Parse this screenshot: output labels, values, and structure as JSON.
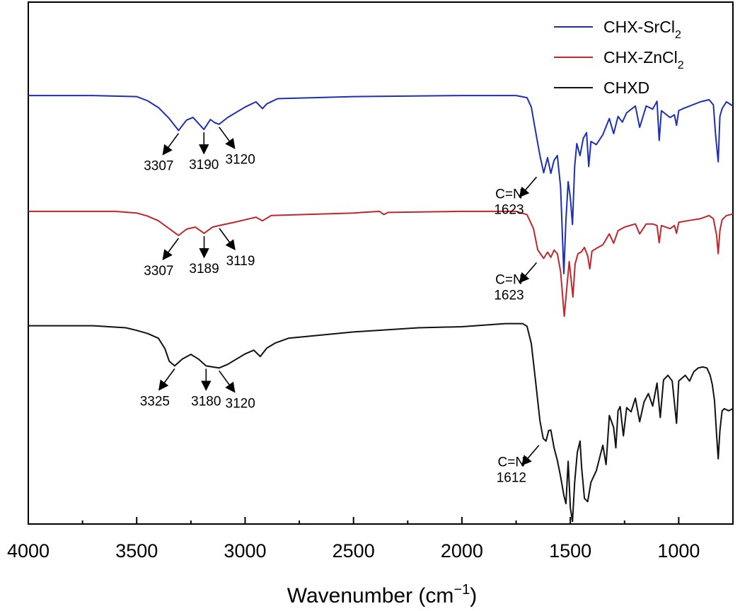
{
  "chart_data": {
    "type": "line",
    "title": "",
    "xlabel": "Wavenumber (cm",
    "xlabel_exponent": "−1",
    "xlabel_close": ")",
    "ylabel": "",
    "x_reversed": true,
    "xlim": [
      4000,
      750
    ],
    "ylim": [
      0,
      100
    ],
    "xticks": [
      {
        "value": 4000,
        "label": "4000"
      },
      {
        "value": 3500,
        "label": "3500"
      },
      {
        "value": 3000,
        "label": "3000"
      },
      {
        "value": 2500,
        "label": "2500"
      },
      {
        "value": 2000,
        "label": "2000"
      },
      {
        "value": 1500,
        "label": "1500"
      },
      {
        "value": 1000,
        "label": "1000"
      }
    ],
    "legend_position": "top-right",
    "series": [
      {
        "name": "CHX-SrCl2",
        "legend_main": "CHX-SrCl",
        "legend_sub": "2",
        "color": "#1d2fb3",
        "points": [
          [
            4000,
            82.1
          ],
          [
            3700,
            82.1
          ],
          [
            3500,
            81.9
          ],
          [
            3450,
            81.1
          ],
          [
            3400,
            79.8
          ],
          [
            3350,
            77.7
          ],
          [
            3307,
            75.4
          ],
          [
            3270,
            77.4
          ],
          [
            3240,
            77.9
          ],
          [
            3190,
            75.6
          ],
          [
            3160,
            77.5
          ],
          [
            3140,
            76.9
          ],
          [
            3120,
            76.6
          ],
          [
            3080,
            77.9
          ],
          [
            3000,
            79.9
          ],
          [
            2950,
            80.9
          ],
          [
            2920,
            79.6
          ],
          [
            2900,
            80.5
          ],
          [
            2850,
            81.5
          ],
          [
            2500,
            81.9
          ],
          [
            2000,
            82.1
          ],
          [
            1750,
            82.1
          ],
          [
            1700,
            81.7
          ],
          [
            1680,
            79.9
          ],
          [
            1660,
            75.2
          ],
          [
            1640,
            70.6
          ],
          [
            1623,
            67.3
          ],
          [
            1605,
            70.2
          ],
          [
            1590,
            67.2
          ],
          [
            1575,
            69.7
          ],
          [
            1560,
            70.6
          ],
          [
            1545,
            64.6
          ],
          [
            1530,
            48.0
          ],
          [
            1520,
            58.3
          ],
          [
            1510,
            65.6
          ],
          [
            1500,
            62.5
          ],
          [
            1490,
            57.4
          ],
          [
            1480,
            68.5
          ],
          [
            1470,
            72.9
          ],
          [
            1455,
            70.6
          ],
          [
            1440,
            73.9
          ],
          [
            1425,
            75.0
          ],
          [
            1415,
            68.5
          ],
          [
            1405,
            73.3
          ],
          [
            1380,
            72.7
          ],
          [
            1350,
            74.6
          ],
          [
            1320,
            77.7
          ],
          [
            1300,
            74.8
          ],
          [
            1280,
            78.1
          ],
          [
            1260,
            77.0
          ],
          [
            1240,
            78.8
          ],
          [
            1200,
            80.1
          ],
          [
            1180,
            76.0
          ],
          [
            1150,
            80.1
          ],
          [
            1120,
            79.5
          ],
          [
            1100,
            81.0
          ],
          [
            1090,
            73.5
          ],
          [
            1080,
            79.2
          ],
          [
            1040,
            77.9
          ],
          [
            1020,
            78.4
          ],
          [
            1010,
            76.4
          ],
          [
            1000,
            79.2
          ],
          [
            980,
            79.6
          ],
          [
            900,
            80.9
          ],
          [
            860,
            81.3
          ],
          [
            840,
            80.3
          ],
          [
            830,
            74.6
          ],
          [
            818,
            69.4
          ],
          [
            810,
            78.1
          ],
          [
            800,
            79.6
          ],
          [
            780,
            80.9
          ],
          [
            750,
            80.1
          ]
        ]
      },
      {
        "name": "CHX-ZnCl2",
        "legend_main": "CHX-ZnCl",
        "legend_sub": "2",
        "color": "#c0262b",
        "points": [
          [
            4000,
            59.9
          ],
          [
            3600,
            59.9
          ],
          [
            3500,
            59.6
          ],
          [
            3450,
            59.0
          ],
          [
            3400,
            58.1
          ],
          [
            3350,
            56.6
          ],
          [
            3307,
            55.3
          ],
          [
            3270,
            56.5
          ],
          [
            3230,
            56.9
          ],
          [
            3189,
            55.7
          ],
          [
            3150,
            56.9
          ],
          [
            3119,
            57.2
          ],
          [
            3050,
            57.8
          ],
          [
            2980,
            58.5
          ],
          [
            2950,
            58.8
          ],
          [
            2920,
            58.1
          ],
          [
            2880,
            59.1
          ],
          [
            2500,
            59.6
          ],
          [
            2380,
            59.9
          ],
          [
            2360,
            59.3
          ],
          [
            2340,
            59.7
          ],
          [
            2000,
            59.9
          ],
          [
            1750,
            59.9
          ],
          [
            1700,
            59.3
          ],
          [
            1670,
            56.6
          ],
          [
            1650,
            52.5
          ],
          [
            1623,
            50.9
          ],
          [
            1605,
            52.1
          ],
          [
            1590,
            51.1
          ],
          [
            1575,
            52.5
          ],
          [
            1560,
            51.8
          ],
          [
            1545,
            48.4
          ],
          [
            1528,
            39.8
          ],
          [
            1515,
            45.9
          ],
          [
            1505,
            50.3
          ],
          [
            1497,
            47.1
          ],
          [
            1488,
            43.5
          ],
          [
            1478,
            49.8
          ],
          [
            1465,
            51.8
          ],
          [
            1450,
            52.1
          ],
          [
            1435,
            53.0
          ],
          [
            1420,
            51.4
          ],
          [
            1410,
            48.9
          ],
          [
            1400,
            52.3
          ],
          [
            1380,
            52.8
          ],
          [
            1350,
            53.5
          ],
          [
            1320,
            55.6
          ],
          [
            1300,
            53.8
          ],
          [
            1280,
            56.2
          ],
          [
            1250,
            56.9
          ],
          [
            1200,
            57.5
          ],
          [
            1180,
            55.6
          ],
          [
            1150,
            57.5
          ],
          [
            1120,
            57.5
          ],
          [
            1100,
            57.2
          ],
          [
            1090,
            53.9
          ],
          [
            1080,
            57.2
          ],
          [
            1040,
            56.6
          ],
          [
            1020,
            57.2
          ],
          [
            1010,
            55.7
          ],
          [
            1000,
            57.8
          ],
          [
            960,
            58.1
          ],
          [
            900,
            58.5
          ],
          [
            860,
            59.1
          ],
          [
            840,
            58.5
          ],
          [
            825,
            55.3
          ],
          [
            818,
            51.8
          ],
          [
            810,
            56.2
          ],
          [
            800,
            58.3
          ],
          [
            780,
            59.1
          ],
          [
            750,
            59.4
          ]
        ]
      },
      {
        "name": "CHXD",
        "legend_main": "CHXD",
        "legend_sub": "",
        "color": "#111111",
        "points": [
          [
            4000,
            38.0
          ],
          [
            3700,
            38.0
          ],
          [
            3550,
            37.6
          ],
          [
            3500,
            37.1
          ],
          [
            3450,
            36.5
          ],
          [
            3400,
            35.6
          ],
          [
            3370,
            33.6
          ],
          [
            3350,
            31.2
          ],
          [
            3325,
            30.3
          ],
          [
            3290,
            31.6
          ],
          [
            3250,
            32.5
          ],
          [
            3215,
            31.6
          ],
          [
            3180,
            30.3
          ],
          [
            3150,
            30.1
          ],
          [
            3120,
            29.9
          ],
          [
            3080,
            30.6
          ],
          [
            3040,
            31.6
          ],
          [
            3000,
            32.6
          ],
          [
            2960,
            33.3
          ],
          [
            2930,
            32.1
          ],
          [
            2900,
            33.7
          ],
          [
            2860,
            34.7
          ],
          [
            2800,
            35.6
          ],
          [
            2500,
            36.8
          ],
          [
            2200,
            37.6
          ],
          [
            2000,
            37.8
          ],
          [
            1800,
            38.4
          ],
          [
            1720,
            38.4
          ],
          [
            1700,
            37.9
          ],
          [
            1680,
            34.6
          ],
          [
            1660,
            27.3
          ],
          [
            1640,
            19.8
          ],
          [
            1625,
            16.4
          ],
          [
            1612,
            15.9
          ],
          [
            1600,
            17.9
          ],
          [
            1590,
            18.0
          ],
          [
            1575,
            14.6
          ],
          [
            1560,
            12.2
          ],
          [
            1545,
            9.1
          ],
          [
            1530,
            5.5
          ],
          [
            1520,
            3.9
          ],
          [
            1510,
            12.0
          ],
          [
            1500,
            3.1
          ],
          [
            1490,
            0.5
          ],
          [
            1480,
            8.0
          ],
          [
            1468,
            13.7
          ],
          [
            1455,
            15.9
          ],
          [
            1448,
            10.9
          ],
          [
            1435,
            4.9
          ],
          [
            1420,
            4.3
          ],
          [
            1405,
            8.0
          ],
          [
            1380,
            10.2
          ],
          [
            1350,
            15.1
          ],
          [
            1335,
            11.4
          ],
          [
            1320,
            20.8
          ],
          [
            1300,
            18.5
          ],
          [
            1290,
            14.6
          ],
          [
            1280,
            21.7
          ],
          [
            1270,
            22.5
          ],
          [
            1255,
            16.9
          ],
          [
            1240,
            22.3
          ],
          [
            1220,
            21.5
          ],
          [
            1200,
            24.1
          ],
          [
            1180,
            19.6
          ],
          [
            1160,
            23.4
          ],
          [
            1140,
            25.0
          ],
          [
            1120,
            22.6
          ],
          [
            1100,
            27.0
          ],
          [
            1085,
            20.4
          ],
          [
            1070,
            27.6
          ],
          [
            1050,
            28.5
          ],
          [
            1030,
            27.4
          ],
          [
            1010,
            19.3
          ],
          [
            1000,
            27.4
          ],
          [
            970,
            28.5
          ],
          [
            950,
            27.4
          ],
          [
            930,
            29.2
          ],
          [
            910,
            29.9
          ],
          [
            890,
            30.1
          ],
          [
            870,
            29.9
          ],
          [
            855,
            28.5
          ],
          [
            845,
            26.7
          ],
          [
            835,
            23.6
          ],
          [
            825,
            16.9
          ],
          [
            818,
            12.5
          ],
          [
            810,
            17.9
          ],
          [
            800,
            21.7
          ],
          [
            790,
            22.1
          ],
          [
            770,
            21.7
          ],
          [
            750,
            22.1
          ]
        ]
      }
    ],
    "annotations": [
      {
        "label": "3307",
        "wavenumber": 3307,
        "series": "CHX-SrCl2",
        "direction": "down-left"
      },
      {
        "label": "3190",
        "wavenumber": 3190,
        "series": "CHX-SrCl2",
        "direction": "down"
      },
      {
        "label": "3120",
        "wavenumber": 3120,
        "series": "CHX-SrCl2",
        "direction": "down-right"
      },
      {
        "label": "C=N",
        "label2": "1623",
        "wavenumber": 1623,
        "series": "CHX-SrCl2",
        "direction": "down-left"
      },
      {
        "label": "3307",
        "wavenumber": 3307,
        "series": "CHX-ZnCl2",
        "direction": "down-left"
      },
      {
        "label": "3189",
        "wavenumber": 3189,
        "series": "CHX-ZnCl2",
        "direction": "down"
      },
      {
        "label": "3119",
        "wavenumber": 3119,
        "series": "CHX-ZnCl2",
        "direction": "down-right"
      },
      {
        "label": "C=N",
        "label2": "1623",
        "wavenumber": 1623,
        "series": "CHX-ZnCl2",
        "direction": "down-left"
      },
      {
        "label": "3325",
        "wavenumber": 3325,
        "series": "CHXD",
        "direction": "down-left"
      },
      {
        "label": "3180",
        "wavenumber": 3180,
        "series": "CHXD",
        "direction": "down"
      },
      {
        "label": "3120",
        "wavenumber": 3120,
        "series": "CHXD",
        "direction": "down-right"
      },
      {
        "label": "C=N",
        "label2": "1612",
        "wavenumber": 1612,
        "series": "CHXD",
        "direction": "down-left"
      }
    ]
  }
}
